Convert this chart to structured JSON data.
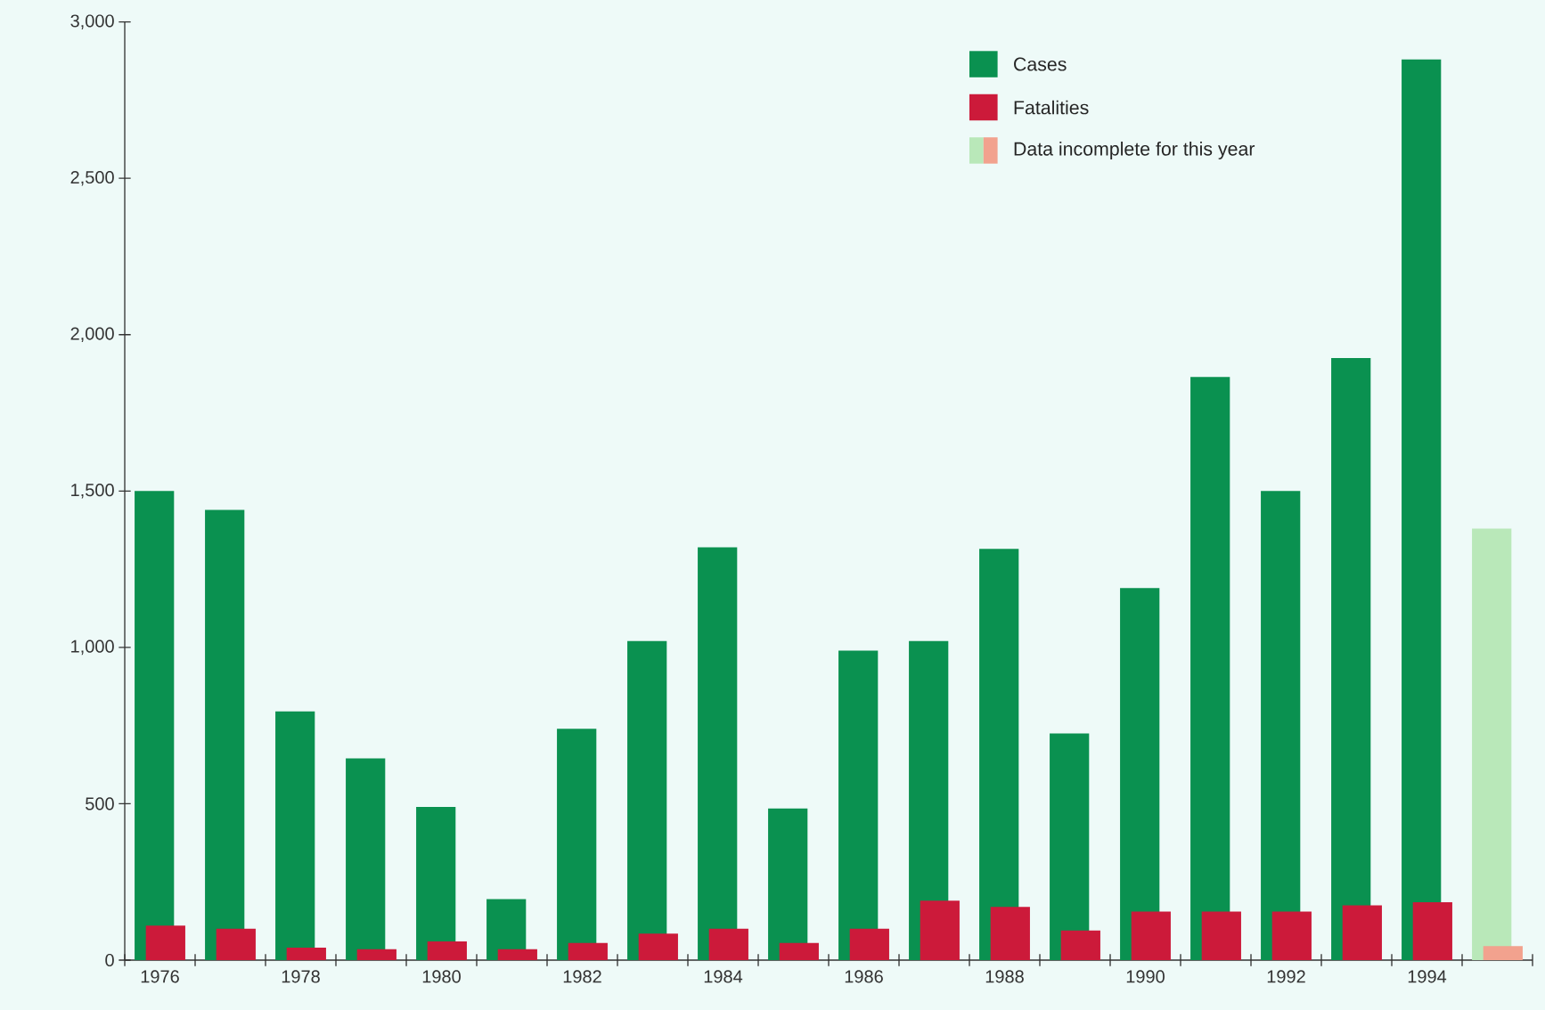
{
  "chart_data": {
    "type": "bar",
    "categories": [
      "1976",
      null,
      "1978",
      null,
      "1980",
      null,
      "1982",
      null,
      "1984",
      null,
      "1986",
      null,
      "1988",
      null,
      "1990",
      null,
      "1992",
      null,
      "1994",
      null
    ],
    "series": [
      {
        "name": "Cases",
        "color": "#0a9150",
        "colors": [
          "#0a9150",
          "#0a9150",
          "#0a9150",
          "#0a9150",
          "#0a9150",
          "#0a9150",
          "#0a9150",
          "#0a9150",
          "#0a9150",
          "#0a9150",
          "#0a9150",
          "#0a9150",
          "#0a9150",
          "#0a9150",
          "#0a9150",
          "#0a9150",
          "#0a9150",
          "#0a9150",
          "#0a9150",
          "#b9e8b9"
        ],
        "values": [
          1500,
          1440,
          795,
          645,
          490,
          195,
          740,
          1020,
          1320,
          485,
          990,
          1020,
          1315,
          725,
          1190,
          1865,
          1500,
          1925,
          2880,
          1380
        ]
      },
      {
        "name": "Fatalities",
        "color": "#cc1a3a",
        "colors": [
          "#cc1a3a",
          "#cc1a3a",
          "#cc1a3a",
          "#cc1a3a",
          "#cc1a3a",
          "#cc1a3a",
          "#cc1a3a",
          "#cc1a3a",
          "#cc1a3a",
          "#cc1a3a",
          "#cc1a3a",
          "#cc1a3a",
          "#cc1a3a",
          "#cc1a3a",
          "#cc1a3a",
          "#cc1a3a",
          "#cc1a3a",
          "#cc1a3a",
          "#cc1a3a",
          "#f2a28e"
        ],
        "values": [
          110,
          100,
          40,
          35,
          60,
          35,
          55,
          85,
          100,
          55,
          100,
          190,
          170,
          95,
          155,
          155,
          155,
          175,
          185,
          45
        ]
      }
    ],
    "annotations": [
      "Data incomplete for this year"
    ],
    "ylim": [
      0,
      3000
    ],
    "yticks": [
      0,
      {
        "value": 500,
        "label": "500"
      },
      {
        "value": 1000,
        "label": "1,000"
      },
      {
        "value": 1500,
        "label": "1,500"
      },
      {
        "value": 2000,
        "label": "2,000"
      },
      {
        "value": 2500,
        "label": "2,500"
      },
      {
        "value": 3000,
        "label": "3,000"
      }
    ],
    "legend": "top right"
  }
}
